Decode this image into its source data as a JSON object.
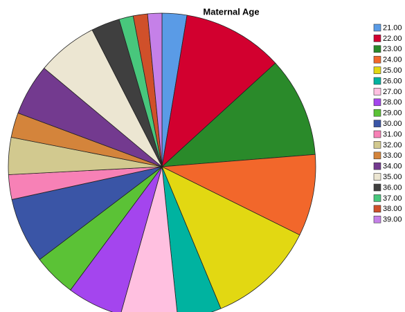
{
  "chart_data": {
    "type": "pie",
    "title": "Maternal Age",
    "categories": [
      "21.00",
      "22.00",
      "23.00",
      "24.00",
      "25.00",
      "26.00",
      "27.00",
      "28.00",
      "29.00",
      "30.00",
      "31.00",
      "32.00",
      "33.00",
      "34.00",
      "35.00",
      "36.00",
      "37.00",
      "38.00",
      "39.00"
    ],
    "values": [
      2.6,
      10.6,
      10.5,
      8.6,
      11.4,
      4.6,
      6.0,
      5.8,
      4.5,
      6.9,
      2.6,
      3.9,
      2.6,
      5.4,
      6.4,
      3.0,
      1.5,
      1.5,
      1.5
    ],
    "colors": [
      "#5a9be6",
      "#d2002f",
      "#2a8a2a",
      "#f2672b",
      "#e2d812",
      "#00b3a0",
      "#ffc0e0",
      "#a445ee",
      "#5bc236",
      "#3a55a6",
      "#f781b6",
      "#d2c98f",
      "#d4843b",
      "#733a8f",
      "#ece6d2",
      "#3f3f3f",
      "#48c77c",
      "#d0502a",
      "#c580e8"
    ],
    "legend": "right"
  }
}
